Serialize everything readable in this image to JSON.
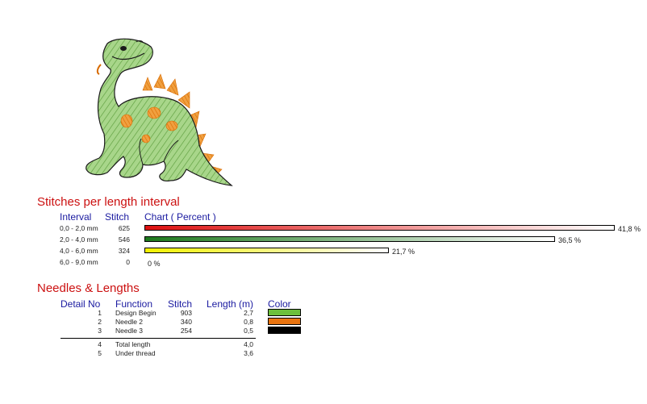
{
  "stitches": {
    "title": "Stitches per length interval",
    "headers": {
      "interval": "Interval",
      "stitch": "Stitch",
      "chart": "Chart ( Percent )"
    },
    "rows": [
      {
        "interval": "0,0 - 2,0 mm",
        "stitch": "625",
        "percent": 41.8,
        "percent_label": "41,8 %",
        "color_from": "#dd1111",
        "color_to": "#ffffff"
      },
      {
        "interval": "2,0 - 4,0 mm",
        "stitch": "546",
        "percent": 36.5,
        "percent_label": "36,5 %",
        "color_from": "#1d7a1d",
        "color_to": "#ffffff"
      },
      {
        "interval": "4,0 - 6,0 mm",
        "stitch": "324",
        "percent": 21.7,
        "percent_label": "21,7 %",
        "color_from": "#f2f200",
        "color_to": "#ffffff"
      },
      {
        "interval": "6,0 - 9,0 mm",
        "stitch": "0",
        "percent": 0,
        "percent_label": "0 %",
        "color_from": "#ffffff",
        "color_to": "#ffffff"
      }
    ]
  },
  "needles": {
    "title": "Needles & Lengths",
    "headers": {
      "detail": "Detail No",
      "function": "Function",
      "stitch": "Stitch",
      "length": "Length (m)",
      "color": "Color"
    },
    "rows": [
      {
        "no": "1",
        "function": "Design Begin",
        "stitch": "903",
        "length": "2,7",
        "color": "#6cbf3c"
      },
      {
        "no": "2",
        "function": "Needle 2",
        "stitch": "340",
        "length": "0,8",
        "color": "#e8730f"
      },
      {
        "no": "3",
        "function": "Needle 3",
        "stitch": "254",
        "length": "0,5",
        "color": "#000000"
      }
    ],
    "totals": [
      {
        "no": "4",
        "function": "Total length",
        "length": "4,0"
      },
      {
        "no": "5",
        "function": "Under thread",
        "length": "3,6"
      }
    ]
  }
}
